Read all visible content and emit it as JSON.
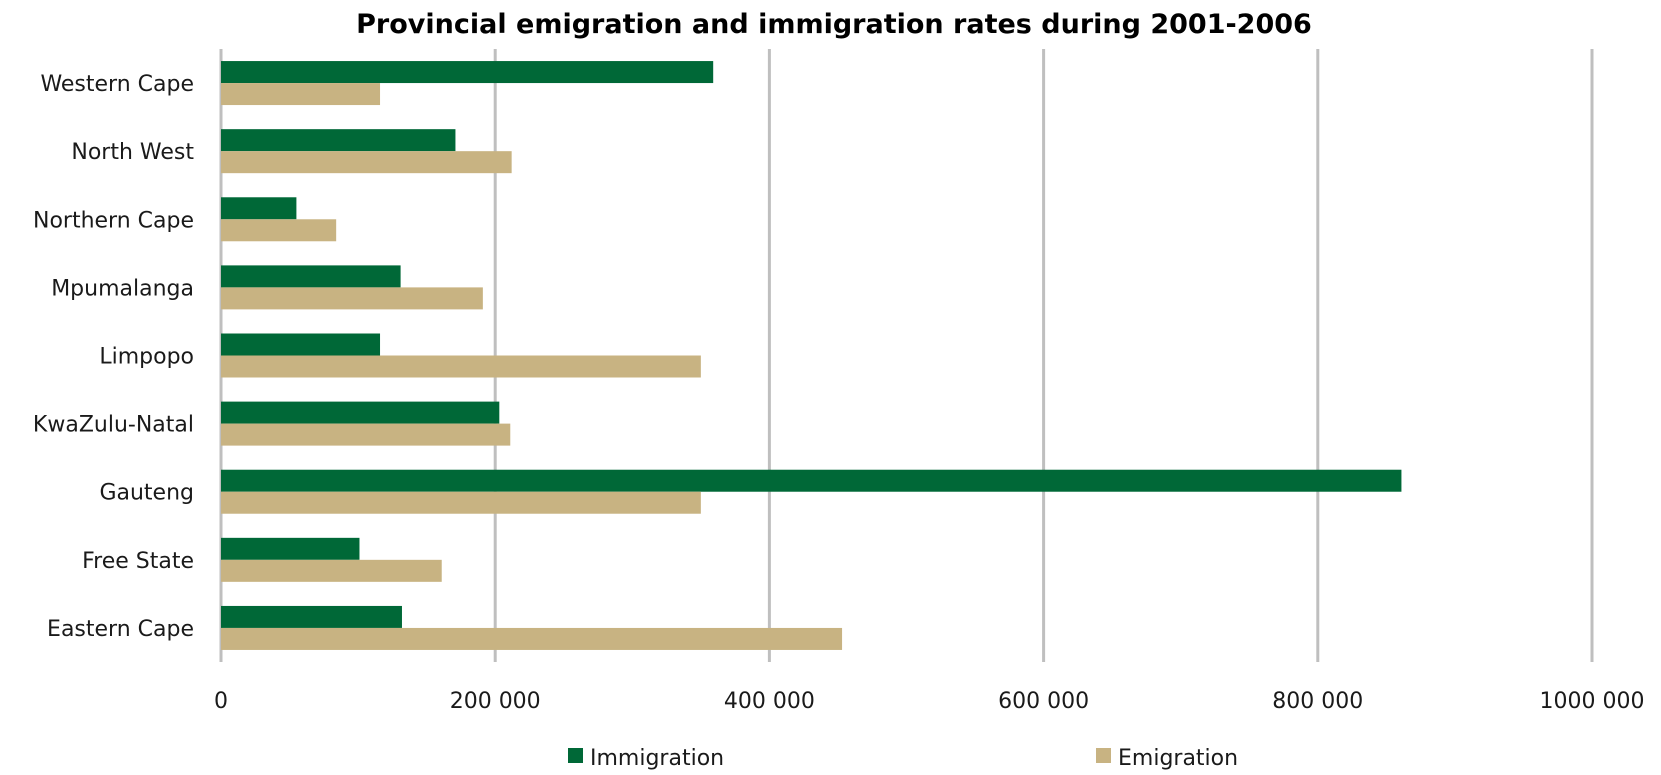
{
  "chart_data": {
    "type": "bar",
    "orientation": "horizontal",
    "title": "Provincial emigration and immigration rates during 2001-2006",
    "xlabel": "",
    "ylabel": "",
    "categories": [
      "Western Cape",
      "North West",
      "Northern Cape",
      "Mpumalanga",
      "Limpopo",
      "KwaZulu-Natal",
      "Gauteng",
      "Free State",
      "Eastern Cape"
    ],
    "series": [
      {
        "name": "Immigration",
        "color": "#006837",
        "values": [
          359000,
          171000,
          55000,
          131000,
          116000,
          203000,
          861000,
          101000,
          132000
        ]
      },
      {
        "name": "Emigration",
        "color": "#c8b382",
        "values": [
          116000,
          212000,
          84000,
          191000,
          350000,
          211000,
          350000,
          161000,
          453000
        ]
      }
    ],
    "xlim": [
      0,
      1000000
    ],
    "ticks": [
      {
        "value": 0,
        "label": "0"
      },
      {
        "value": 200000,
        "label": "200 000"
      },
      {
        "value": 400000,
        "label": "400 000"
      },
      {
        "value": 600000,
        "label": "600 000"
      },
      {
        "value": 800000,
        "label": "800 000"
      },
      {
        "value": 1000000,
        "label": "1000 000"
      }
    ],
    "grid": true,
    "legend_position": "bottom"
  }
}
